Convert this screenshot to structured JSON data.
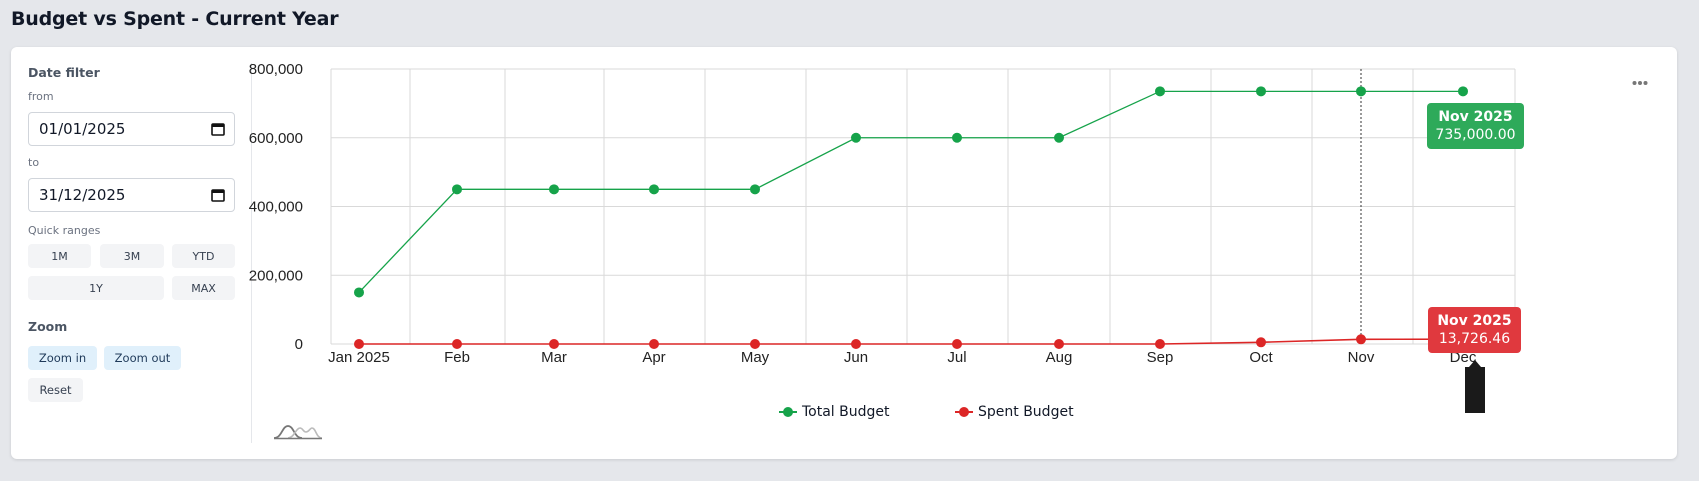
{
  "page": {
    "title": "Budget vs Spent - Current Year"
  },
  "sidebar": {
    "date_filter": {
      "title": "Date filter",
      "from_label": "from",
      "from_value": "01/01/2025",
      "to_label": "to",
      "to_value": "31/12/2025"
    },
    "quick_ranges": {
      "title": "Quick ranges",
      "buttons": [
        "1M",
        "3M",
        "YTD",
        "1Y",
        "MAX"
      ]
    },
    "zoom": {
      "title": "Zoom",
      "zoom_in": "Zoom in",
      "zoom_out": "Zoom out",
      "reset": "Reset"
    }
  },
  "icons": {
    "calendar": "calendar-icon",
    "more": "more-horizontal-icon",
    "navigator": "range-navigator-icon"
  },
  "colors": {
    "total_budget": "#16a34a",
    "spent_budget": "#dc2626",
    "tooltip_green": "#2eaa5a",
    "tooltip_red": "#e0393e",
    "grid": "#d9d9d9"
  },
  "tooltips": {
    "total": {
      "title": "Nov 2025",
      "value": "735,000.00"
    },
    "spent": {
      "title": "Nov 2025",
      "value": "13,726.46"
    }
  },
  "chart_data": {
    "type": "line",
    "title": "Budget vs Spent - Current Year",
    "xlabel": "",
    "ylabel": "",
    "categories": [
      "Jan 2025",
      "Feb",
      "Mar",
      "Apr",
      "May",
      "Jun",
      "Jul",
      "Aug",
      "Sep",
      "Oct",
      "Nov",
      "Dec"
    ],
    "yticks": [
      "0",
      "200,000",
      "400,000",
      "600,000",
      "800,000"
    ],
    "ylim": [
      0,
      800000
    ],
    "grid": true,
    "legend_position": "bottom",
    "series": [
      {
        "name": "Total Budget",
        "color": "#16a34a",
        "values": [
          150000,
          450000,
          450000,
          450000,
          450000,
          600000,
          600000,
          600000,
          735000,
          735000,
          735000,
          735000
        ]
      },
      {
        "name": "Spent Budget",
        "color": "#dc2626",
        "values": [
          0,
          0,
          0,
          0,
          0,
          0,
          0,
          0,
          0,
          5000,
          13726.46,
          14000
        ]
      }
    ],
    "hover": {
      "category": "Nov 2025",
      "Total Budget": 735000.0,
      "Spent Budget": 13726.46
    }
  }
}
